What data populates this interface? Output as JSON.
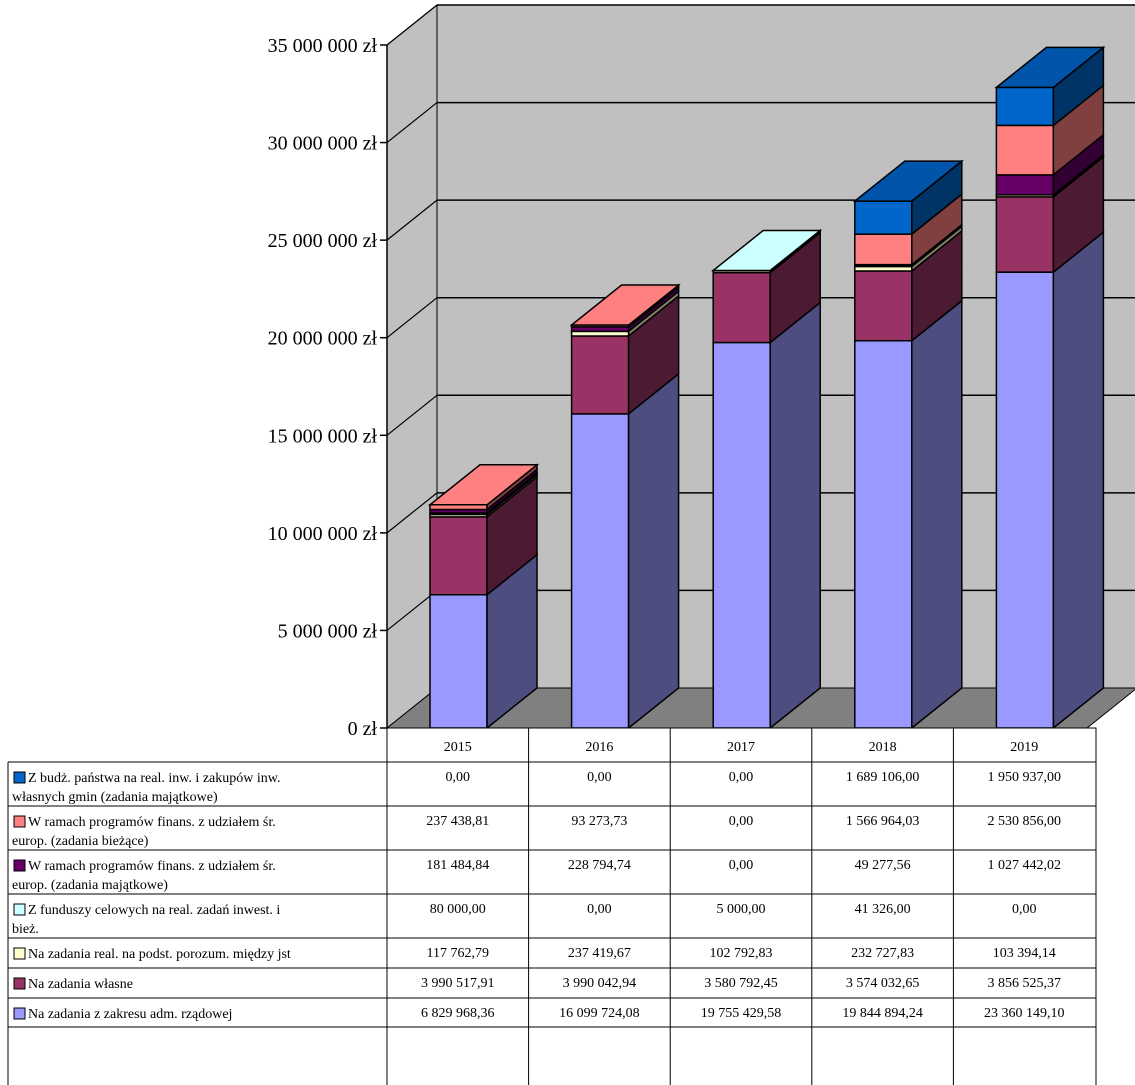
{
  "chart_data": {
    "type": "bar",
    "stacked": true,
    "style": "3d-column with data table",
    "categories": [
      "2015",
      "2016",
      "2017",
      "2018",
      "2019"
    ],
    "ylim": [
      0,
      35000000
    ],
    "yticks": [
      0,
      5000000,
      10000000,
      15000000,
      20000000,
      25000000,
      30000000,
      35000000
    ],
    "ytick_labels": [
      "0 zł",
      "5 000 000 zł",
      "10 000 000 zł",
      "15 000 000 zł",
      "20 000 000 zł",
      "25 000 000 zł",
      "30 000 000 zł",
      "35 000 000 zł"
    ],
    "grid": true,
    "legend_placement": "data table below chart",
    "series": [
      {
        "name": "Na zadania z zakresu adm. rządowej",
        "color": "#9999ff",
        "side_color": "#4d4d80",
        "top_color": "#9999ff",
        "values": [
          6829968.36,
          16099724.08,
          19755429.58,
          19844894.24,
          23360149.1
        ],
        "labels": [
          "6 829 968,36",
          "16 099 724,08",
          "19 755 429,58",
          "19 844 894,24",
          "23 360 149,10"
        ]
      },
      {
        "name": "Na zadania własne",
        "color": "#993366",
        "side_color": "#4d1a33",
        "top_color": "#993366",
        "values": [
          3990517.91,
          3990042.94,
          3580792.45,
          3574032.65,
          3856525.37
        ],
        "labels": [
          "3 990 517,91",
          "3 990 042,94",
          "3 580 792,45",
          "3 574 032,65",
          "3 856 525,37"
        ]
      },
      {
        "name": "Na zadania real. na podst. porozum. między jst",
        "color": "#ffffcc",
        "side_color": "#808066",
        "top_color": "#ffffcc",
        "values": [
          117762.79,
          237419.67,
          102792.83,
          232727.83,
          103394.14
        ],
        "labels": [
          "117 762,79",
          "237 419,67",
          "102 792,83",
          "232 727,83",
          "103 394,14"
        ]
      },
      {
        "name": "Z funduszy celowych na real. zadań inwest. i bież.",
        "color": "#ccffff",
        "side_color": "#668080",
        "top_color": "#ccffff",
        "values": [
          80000.0,
          0.0,
          5000.0,
          41326.0,
          0.0
        ],
        "labels": [
          "80 000,00",
          "0,00",
          "5 000,00",
          "41 326,00",
          "0,00"
        ]
      },
      {
        "name": "W ramach programów finans. z udziałem śr. europ. (zadania majątkowe)",
        "color": "#660066",
        "side_color": "#330033",
        "top_color": "#660066",
        "values": [
          181484.84,
          228794.74,
          0.0,
          49277.56,
          1027442.02
        ],
        "labels": [
          "181 484,84",
          "228 794,74",
          "0,00",
          "49 277,56",
          "1 027 442,02"
        ]
      },
      {
        "name": "W ramach programów finans. z udziałem śr. europ. (zadania bieżące)",
        "color": "#ff8080",
        "side_color": "#804040",
        "top_color": "#ff8080",
        "values": [
          237438.81,
          93273.73,
          0.0,
          1566964.03,
          2530856.0
        ],
        "labels": [
          "237 438,81",
          "93 273,73",
          "0,00",
          "1 566 964,03",
          "2 530 856,00"
        ]
      },
      {
        "name": "Z budż. państwa na real. inw. i zakupów inw. własnych gmin (zadania majątkowe)",
        "color": "#0066cc",
        "side_color": "#003366",
        "top_color": "#0055aa",
        "values": [
          0.0,
          0.0,
          0.0,
          1689106.0,
          1950937.0
        ],
        "labels": [
          "0,00",
          "0,00",
          "0,00",
          "1 689 106,00",
          "1 950 937,00"
        ]
      }
    ],
    "table_row_order": [
      6,
      5,
      4,
      3,
      2,
      1,
      0
    ],
    "table_row_labels": [
      [
        "Z budż. państwa na real. inw. i zakupów inw.",
        "własnych gmin (zadania majątkowe)"
      ],
      [
        "W ramach programów finans. z udziałem śr.",
        "europ. (zadania bieżące)"
      ],
      [
        "W ramach programów finans. z udziałem śr.",
        "europ. (zadania majątkowe)"
      ],
      [
        "Z funduszy celowych na real. zadań inwest. i",
        "bież."
      ],
      [
        "Na zadania real. na podst. porozum. między jst"
      ],
      [
        "Na zadania własne"
      ],
      [
        "Na zadania z zakresu adm. rządowej"
      ]
    ]
  },
  "colors": {
    "wall": "#c0c0c0",
    "floor": "#808080",
    "grid": "#000000"
  }
}
